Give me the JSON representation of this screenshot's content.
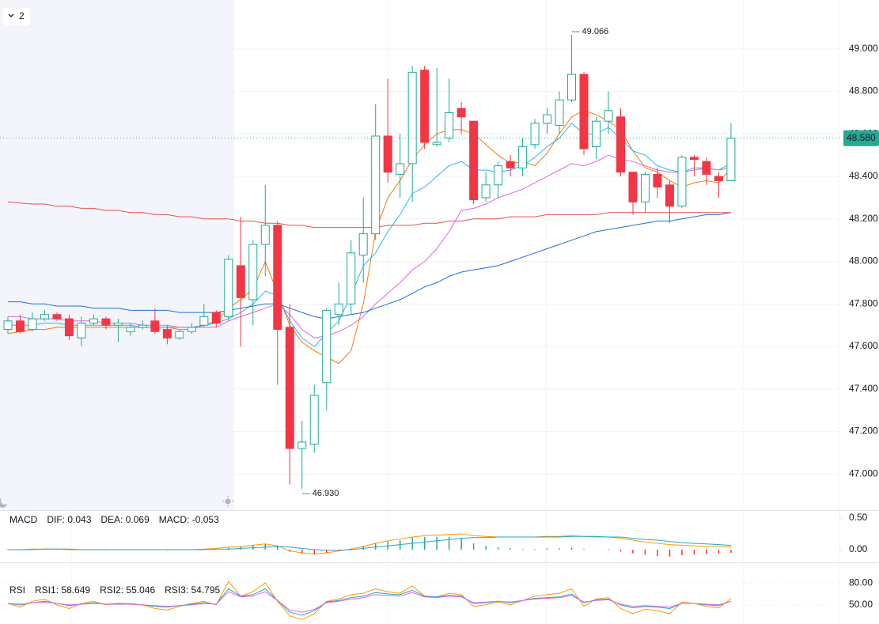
{
  "top_badge": "2",
  "chart_data": [
    {
      "type": "candlestick",
      "open": [
        47.68,
        47.72,
        47.68,
        47.73,
        47.75,
        47.73,
        47.64,
        47.71,
        47.73,
        47.7,
        47.67,
        47.69,
        47.72,
        47.68,
        47.64,
        47.67,
        47.7,
        47.76,
        47.74,
        47.98,
        47.82,
        48.08,
        48.17,
        47.69,
        47.12,
        47.14,
        47.43,
        47.75,
        47.8,
        48.03,
        48.13,
        48.59,
        48.41,
        48.46,
        48.9,
        48.55,
        48.58,
        48.72,
        48.66,
        48.3,
        48.36,
        48.47,
        48.44,
        48.55,
        48.65,
        48.64,
        48.76,
        48.88,
        48.54,
        48.66,
        48.68,
        48.42,
        48.28,
        48.41,
        48.36,
        48.26,
        48.49,
        48.47,
        48.4,
        48.38
      ],
      "high": [
        47.74,
        47.75,
        47.76,
        47.77,
        47.76,
        47.75,
        47.74,
        47.75,
        47.74,
        47.73,
        47.71,
        47.72,
        47.78,
        47.7,
        47.68,
        47.71,
        47.8,
        47.77,
        48.03,
        48.21,
        48.1,
        48.36,
        48.19,
        47.8,
        47.25,
        47.42,
        47.78,
        47.9,
        48.1,
        48.3,
        48.74,
        48.86,
        48.6,
        48.92,
        48.92,
        48.91,
        48.86,
        48.75,
        48.66,
        48.42,
        48.47,
        48.5,
        48.58,
        48.67,
        48.72,
        48.8,
        49.066,
        48.89,
        48.68,
        48.8,
        48.72,
        48.42,
        48.42,
        48.44,
        48.38,
        48.5,
        48.5,
        48.49,
        48.42,
        48.65
      ],
      "low": [
        47.66,
        47.66,
        47.67,
        47.72,
        47.72,
        47.63,
        47.6,
        47.7,
        47.68,
        47.62,
        47.65,
        47.68,
        47.66,
        47.61,
        47.63,
        47.66,
        47.69,
        47.69,
        47.72,
        47.6,
        47.7,
        47.93,
        47.42,
        46.95,
        46.93,
        47.1,
        47.3,
        47.7,
        47.75,
        47.9,
        48.1,
        48.37,
        48.3,
        48.28,
        48.53,
        48.54,
        48.56,
        48.6,
        48.27,
        48.28,
        48.3,
        48.4,
        48.4,
        48.53,
        48.6,
        48.6,
        48.75,
        48.5,
        48.48,
        48.6,
        48.4,
        48.22,
        48.23,
        48.3,
        48.18,
        48.25,
        48.4,
        48.36,
        48.3,
        48.38
      ],
      "close": [
        47.72,
        47.67,
        47.73,
        47.75,
        47.73,
        47.65,
        47.71,
        47.73,
        47.7,
        47.71,
        47.69,
        47.7,
        47.67,
        47.64,
        47.67,
        47.69,
        47.74,
        47.71,
        48.01,
        47.83,
        48.08,
        48.17,
        47.68,
        47.12,
        47.15,
        47.37,
        47.77,
        47.8,
        48.04,
        48.13,
        48.59,
        48.42,
        48.46,
        48.89,
        48.56,
        48.56,
        48.7,
        48.68,
        48.29,
        48.36,
        48.45,
        48.44,
        48.54,
        48.65,
        48.69,
        48.76,
        48.88,
        48.53,
        48.66,
        48.71,
        48.42,
        48.28,
        48.41,
        48.35,
        48.26,
        48.49,
        48.48,
        48.41,
        48.38,
        48.58
      ],
      "up_color": "#22ab94",
      "down_color": "#f23645",
      "lines": [
        {
          "color": "#f57c00",
          "values": [
            47.66,
            47.67,
            47.68,
            47.68,
            47.69,
            47.69,
            47.69,
            47.69,
            47.69,
            47.69,
            47.69,
            47.69,
            47.69,
            47.69,
            47.68,
            47.68,
            47.7,
            47.72,
            47.78,
            47.82,
            47.87,
            48.0,
            47.85,
            47.7,
            47.62,
            47.58,
            47.55,
            47.52,
            47.58,
            47.8,
            48.14,
            48.3,
            48.38,
            48.48,
            48.55,
            48.6,
            48.62,
            48.62,
            48.6,
            48.55,
            48.5,
            48.46,
            48.47,
            48.45,
            48.51,
            48.6,
            48.68,
            48.71,
            48.69,
            48.66,
            48.62,
            48.52,
            48.44,
            48.42,
            48.38,
            48.35,
            48.37,
            48.38,
            48.37,
            48.44
          ]
        },
        {
          "color": "#29b6f6",
          "values": [
            47.7,
            47.7,
            47.7,
            47.71,
            47.71,
            47.7,
            47.7,
            47.7,
            47.7,
            47.7,
            47.7,
            47.69,
            47.69,
            47.69,
            47.69,
            47.69,
            47.7,
            47.71,
            47.73,
            47.76,
            47.8,
            47.86,
            47.84,
            47.72,
            47.64,
            47.6,
            47.66,
            47.72,
            47.84,
            47.98,
            48.04,
            48.14,
            48.22,
            48.32,
            48.35,
            48.4,
            48.45,
            48.47,
            48.43,
            48.43,
            48.42,
            48.43,
            48.45,
            48.49,
            48.54,
            48.58,
            48.65,
            48.6,
            48.6,
            48.63,
            48.58,
            48.52,
            48.5,
            48.45,
            48.43,
            48.42,
            48.44,
            48.44,
            48.43,
            48.46
          ]
        },
        {
          "color": "#e066e0",
          "values": [
            47.74,
            47.74,
            47.73,
            47.73,
            47.73,
            47.72,
            47.72,
            47.72,
            47.71,
            47.71,
            47.71,
            47.7,
            47.7,
            47.7,
            47.69,
            47.69,
            47.69,
            47.69,
            47.72,
            47.74,
            47.76,
            47.78,
            47.8,
            47.75,
            47.68,
            47.64,
            47.65,
            47.67,
            47.7,
            47.74,
            47.8,
            47.85,
            47.9,
            47.96,
            48.0,
            48.06,
            48.14,
            48.24,
            48.25,
            48.27,
            48.3,
            48.32,
            48.34,
            48.37,
            48.4,
            48.43,
            48.46,
            48.45,
            48.47,
            48.5,
            48.48,
            48.47,
            48.45,
            48.43,
            48.42,
            48.42,
            48.43,
            48.44,
            48.43,
            48.44
          ]
        },
        {
          "color": "#1e6fd9",
          "values": [
            47.81,
            47.81,
            47.8,
            47.8,
            47.79,
            47.79,
            47.79,
            47.78,
            47.78,
            47.78,
            47.77,
            47.77,
            47.77,
            47.77,
            47.76,
            47.76,
            47.76,
            47.76,
            47.77,
            47.78,
            47.79,
            47.8,
            47.8,
            47.78,
            47.76,
            47.74,
            47.73,
            47.74,
            47.75,
            47.76,
            47.78,
            47.8,
            47.82,
            47.85,
            47.88,
            47.9,
            47.93,
            47.95,
            47.96,
            47.97,
            47.98,
            48.0,
            48.02,
            48.04,
            48.06,
            48.08,
            48.1,
            48.12,
            48.14,
            48.15,
            48.16,
            48.17,
            48.18,
            48.19,
            48.19,
            48.2,
            48.21,
            48.22,
            48.22,
            48.23
          ]
        },
        {
          "color": "#e5534b",
          "values": [
            48.28,
            48.275,
            48.27,
            48.27,
            48.26,
            48.26,
            48.25,
            48.25,
            48.24,
            48.24,
            48.23,
            48.23,
            48.22,
            48.22,
            48.21,
            48.21,
            48.2,
            48.2,
            48.2,
            48.19,
            48.19,
            48.18,
            48.18,
            48.17,
            48.17,
            48.16,
            48.16,
            48.16,
            48.16,
            48.16,
            48.16,
            48.17,
            48.17,
            48.17,
            48.18,
            48.18,
            48.19,
            48.19,
            48.2,
            48.2,
            48.2,
            48.21,
            48.21,
            48.21,
            48.22,
            48.22,
            48.22,
            48.22,
            48.22,
            48.23,
            48.23,
            48.23,
            48.23,
            48.23,
            48.23,
            48.23,
            48.23,
            48.23,
            48.23,
            48.23
          ]
        }
      ],
      "last_price": {
        "value": 48.58,
        "label": "48.580",
        "color": "#22ab94"
      },
      "annotations": [
        {
          "value": 49.066,
          "label": "49.066"
        },
        {
          "value": 46.93,
          "label": "46.930"
        }
      ],
      "ylim": [
        46.83,
        49.23
      ],
      "yticks": [
        {
          "value": 47.0,
          "label": "47.000"
        },
        {
          "value": 47.2,
          "label": "47.200"
        },
        {
          "value": 47.4,
          "label": "47.400"
        },
        {
          "value": 47.6,
          "label": "47.600"
        },
        {
          "value": 47.8,
          "label": "47.800"
        },
        {
          "value": 48.0,
          "label": "48.000"
        },
        {
          "value": 48.2,
          "label": "48.200"
        },
        {
          "value": 48.4,
          "label": "48.400"
        },
        {
          "value": 48.6,
          "label": "48.600"
        },
        {
          "value": 48.8,
          "label": "48.800"
        },
        {
          "value": 49.0,
          "label": "49.000"
        }
      ],
      "grid": true
    },
    {
      "type": "macd",
      "label": "MACD",
      "series": [
        {
          "name": "DIF: 0.043",
          "color": "#ff9800",
          "kind": "line",
          "values": [
            0.0,
            0.0,
            0.01,
            0.01,
            0.01,
            0.0,
            0.0,
            0.0,
            0.0,
            0.0,
            0.0,
            0.0,
            0.0,
            0.0,
            0.0,
            0.0,
            0.01,
            0.02,
            0.04,
            0.05,
            0.07,
            0.09,
            0.06,
            -0.02,
            -0.05,
            -0.07,
            -0.05,
            -0.02,
            0.01,
            0.05,
            0.1,
            0.14,
            0.17,
            0.2,
            0.22,
            0.23,
            0.24,
            0.25,
            0.22,
            0.21,
            0.2,
            0.2,
            0.2,
            0.2,
            0.21,
            0.21,
            0.22,
            0.21,
            0.2,
            0.2,
            0.18,
            0.15,
            0.12,
            0.1,
            0.08,
            0.07,
            0.06,
            0.05,
            0.05,
            0.043
          ]
        },
        {
          "name": "DEA: 0.069",
          "color": "#26a6c4",
          "kind": "line",
          "values": [
            0.0,
            0.0,
            0.0,
            0.01,
            0.01,
            0.01,
            0.0,
            0.0,
            0.0,
            0.0,
            0.0,
            0.0,
            0.0,
            0.0,
            0.0,
            0.0,
            0.0,
            0.01,
            0.01,
            0.02,
            0.03,
            0.04,
            0.05,
            0.04,
            0.02,
            0.0,
            -0.01,
            -0.01,
            0.0,
            0.02,
            0.04,
            0.06,
            0.08,
            0.1,
            0.12,
            0.14,
            0.16,
            0.18,
            0.19,
            0.19,
            0.2,
            0.2,
            0.2,
            0.2,
            0.2,
            0.2,
            0.21,
            0.21,
            0.21,
            0.2,
            0.2,
            0.18,
            0.16,
            0.15,
            0.13,
            0.11,
            0.1,
            0.09,
            0.08,
            0.069
          ]
        },
        {
          "name": "MACD: -0.053",
          "color": "#e066e0",
          "kind": "histogram",
          "up_color": "#22ab94",
          "down_color": "#f23645",
          "values": [
            0.01,
            0.01,
            0.0,
            0.01,
            0.01,
            0.0,
            0.0,
            0.01,
            0.01,
            0.0,
            0.0,
            0.0,
            0.0,
            -0.01,
            0.0,
            0.0,
            0.01,
            0.01,
            0.03,
            0.05,
            0.07,
            0.09,
            0.06,
            -0.03,
            -0.06,
            -0.07,
            -0.05,
            -0.02,
            0.02,
            0.06,
            0.1,
            0.13,
            0.15,
            0.19,
            0.2,
            0.2,
            0.2,
            0.18,
            0.1,
            0.06,
            0.04,
            0.02,
            0.01,
            0.01,
            0.02,
            0.02,
            0.03,
            0.01,
            0.0,
            -0.01,
            -0.03,
            -0.06,
            -0.08,
            -0.1,
            -0.11,
            -0.09,
            -0.08,
            -0.07,
            -0.06,
            -0.053
          ]
        }
      ],
      "ylim": [
        -0.2,
        0.6
      ],
      "yticks": [
        {
          "value": 0.5,
          "label": "0.50"
        },
        {
          "value": 0,
          "label": "0.00"
        }
      ]
    },
    {
      "type": "line",
      "label": "RSI",
      "series": [
        {
          "name": "RSI1: 58.649",
          "color": "#ff9800",
          "values": [
            52,
            47,
            55,
            58,
            50,
            45,
            52,
            55,
            50,
            52,
            52,
            50,
            45,
            43,
            48,
            52,
            55,
            50,
            82,
            62,
            68,
            80,
            55,
            35,
            30,
            38,
            55,
            58,
            64,
            66,
            72,
            68,
            66,
            76,
            62,
            61,
            66,
            64,
            48,
            50,
            54,
            50,
            56,
            62,
            64,
            66,
            72,
            48,
            58,
            60,
            45,
            38,
            44,
            42,
            38,
            54,
            52,
            48,
            46,
            58.649
          ]
        },
        {
          "name": "RSI2: 55.046",
          "color": "#26a6c4",
          "values": [
            52,
            50,
            53,
            55,
            52,
            49,
            51,
            53,
            51,
            52,
            51,
            50,
            48,
            47,
            49,
            51,
            53,
            51,
            72,
            62,
            64,
            72,
            56,
            40,
            36,
            42,
            54,
            56,
            60,
            62,
            67,
            65,
            64,
            70,
            62,
            61,
            63,
            62,
            52,
            53,
            55,
            53,
            56,
            59,
            60,
            61,
            65,
            53,
            57,
            58,
            50,
            46,
            48,
            47,
            45,
            52,
            52,
            50,
            49,
            55.046
          ]
        },
        {
          "name": "RSI3: 54.795",
          "color": "#e066e0",
          "values": [
            52,
            51,
            53,
            54,
            52,
            50,
            51,
            52,
            51,
            51,
            51,
            50,
            49,
            48,
            49,
            50,
            52,
            51,
            68,
            61,
            62,
            68,
            56,
            43,
            40,
            44,
            53,
            55,
            58,
            60,
            64,
            63,
            62,
            67,
            61,
            60,
            62,
            61,
            53,
            54,
            55,
            54,
            56,
            58,
            59,
            60,
            63,
            54,
            56,
            57,
            51,
            48,
            49,
            48,
            47,
            52,
            52,
            51,
            50,
            54.795
          ]
        }
      ],
      "ylim": [
        25,
        105
      ],
      "yticks": [
        {
          "value": 80,
          "label": "80.00"
        },
        {
          "value": 50,
          "label": "50.00"
        }
      ],
      "grid": true
    }
  ]
}
